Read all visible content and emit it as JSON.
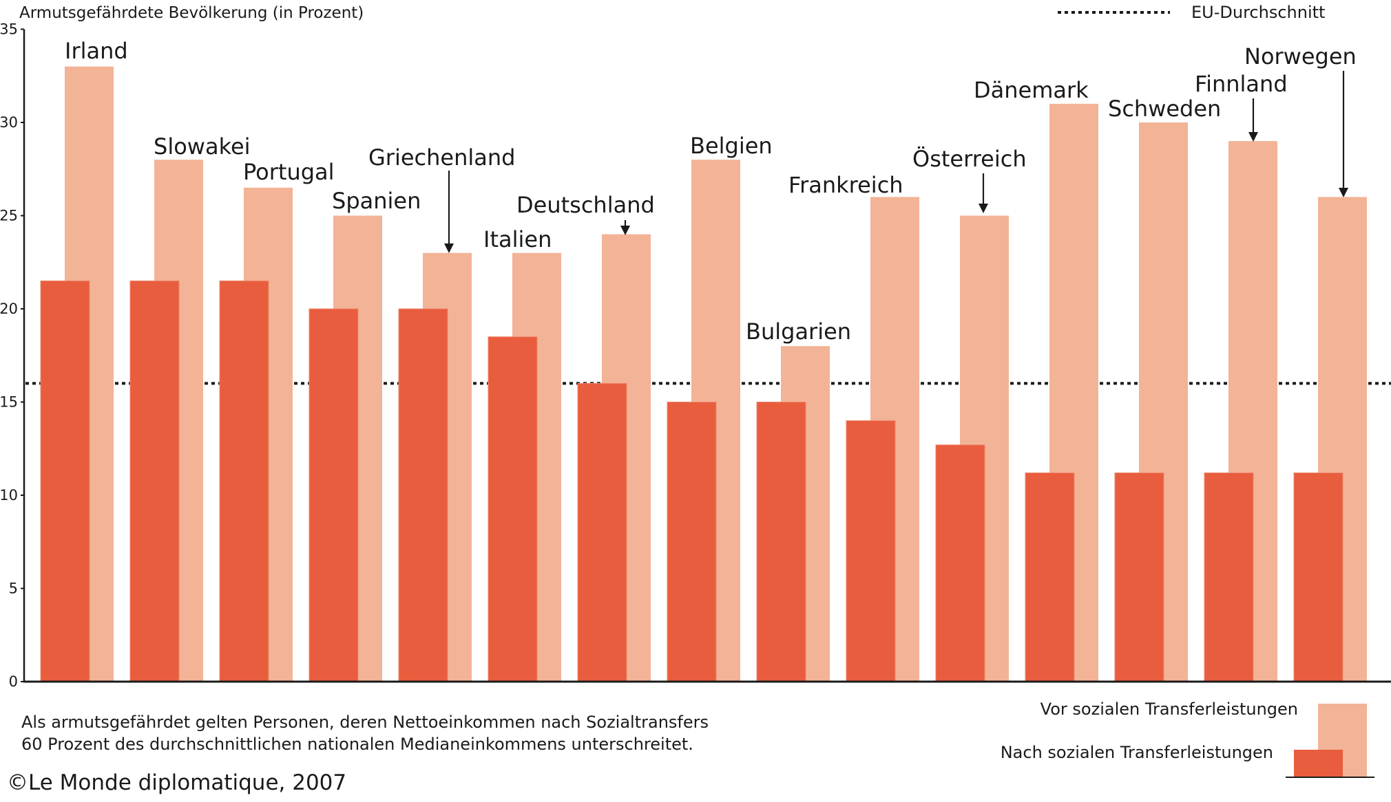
{
  "chart_data": {
    "type": "bar",
    "title": "Armutsgefährdete Bevölkerung (in Prozent)",
    "ylabel": "Armutsgefährdete Bevölkerung (in Prozent)",
    "xlabel": "",
    "ylim": [
      0,
      35
    ],
    "yticks": [
      0,
      5,
      10,
      15,
      20,
      25,
      30,
      35
    ],
    "grid": false,
    "categories": [
      "Irland",
      "Slowakei",
      "Portugal",
      "Spanien",
      "Griechenland",
      "Italien",
      "Deutschland",
      "Belgien",
      "Bulgarien",
      "Frankreich",
      "Österreich",
      "Dänemark",
      "Schweden",
      "Finnland",
      "Norwegen"
    ],
    "series": [
      {
        "name": "Vor sozialen Transferleistungen",
        "color": "#F3B396",
        "values": [
          33,
          28,
          26.5,
          25,
          23,
          23,
          24,
          28,
          18,
          26,
          25,
          31,
          30,
          29,
          26
        ]
      },
      {
        "name": "Nach sozialen Transferleistungen",
        "color": "#E85D3D",
        "values": [
          21.5,
          21.5,
          21.5,
          20,
          20,
          18.5,
          16,
          15,
          15,
          14,
          12.7,
          11.2,
          11.2,
          11.2,
          11.2
        ]
      }
    ],
    "reference_line": {
      "name": "EU-Durchschnitt",
      "value": 16,
      "style": "dotted"
    },
    "label_arrows": [
      "Griechenland",
      "Deutschland",
      "Österreich",
      "Finnland",
      "Norwegen"
    ],
    "legend": {
      "reference_label": "EU-Durchschnitt",
      "reference_placement": "top-right",
      "series_placement": "bottom-right",
      "items": [
        "Vor sozialen Transferleistungen",
        "Nach sozialen Transferleistungen"
      ]
    },
    "annotations": [
      "Als armutsgefährdet gelten Personen, deren Nettoeinkommen nach Sozialtransfers",
      "60 Prozent des durchschnittlichen nationalen Medianeinkommens unterschreitet."
    ],
    "source": "©Le Monde diplomatique, 2007"
  }
}
